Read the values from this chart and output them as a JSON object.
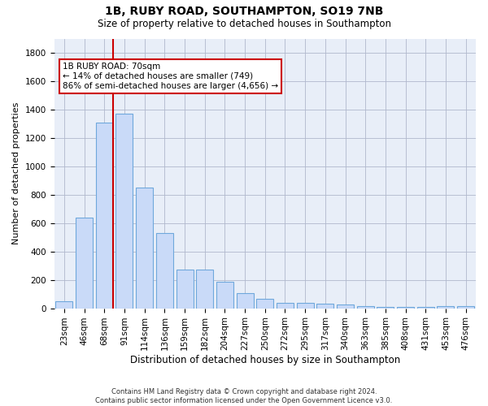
{
  "title": "1B, RUBY ROAD, SOUTHAMPTON, SO19 7NB",
  "subtitle": "Size of property relative to detached houses in Southampton",
  "xlabel": "Distribution of detached houses by size in Southampton",
  "ylabel": "Number of detached properties",
  "footer_line1": "Contains HM Land Registry data © Crown copyright and database right 2024.",
  "footer_line2": "Contains public sector information licensed under the Open Government Licence v3.0.",
  "bar_color": "#c9daf8",
  "bar_edge_color": "#6fa8dc",
  "annotation_line1": "1B RUBY ROAD: 70sqm",
  "annotation_line2": "← 14% of detached houses are smaller (749)",
  "annotation_line3": "86% of semi-detached houses are larger (4,656) →",
  "annotation_box_color": "#cc0000",
  "vline_color": "#cc0000",
  "vline_bin_index": 2,
  "categories": [
    "23sqm",
    "46sqm",
    "68sqm",
    "91sqm",
    "114sqm",
    "136sqm",
    "159sqm",
    "182sqm",
    "204sqm",
    "227sqm",
    "250sqm",
    "272sqm",
    "295sqm",
    "317sqm",
    "340sqm",
    "363sqm",
    "385sqm",
    "408sqm",
    "431sqm",
    "453sqm",
    "476sqm"
  ],
  "values": [
    50,
    640,
    1310,
    1370,
    850,
    530,
    275,
    275,
    185,
    105,
    65,
    40,
    40,
    30,
    25,
    15,
    10,
    10,
    10,
    15,
    15
  ],
  "ylim": [
    0,
    1900
  ],
  "yticks": [
    0,
    200,
    400,
    600,
    800,
    1000,
    1200,
    1400,
    1600,
    1800
  ],
  "background_color": "#ffffff",
  "plot_bg_color": "#e8eef8",
  "grid_color": "#b0b8cc",
  "title_fontsize": 10,
  "subtitle_fontsize": 8.5,
  "axis_label_fontsize": 8,
  "tick_fontsize": 7.5,
  "footer_fontsize": 6
}
